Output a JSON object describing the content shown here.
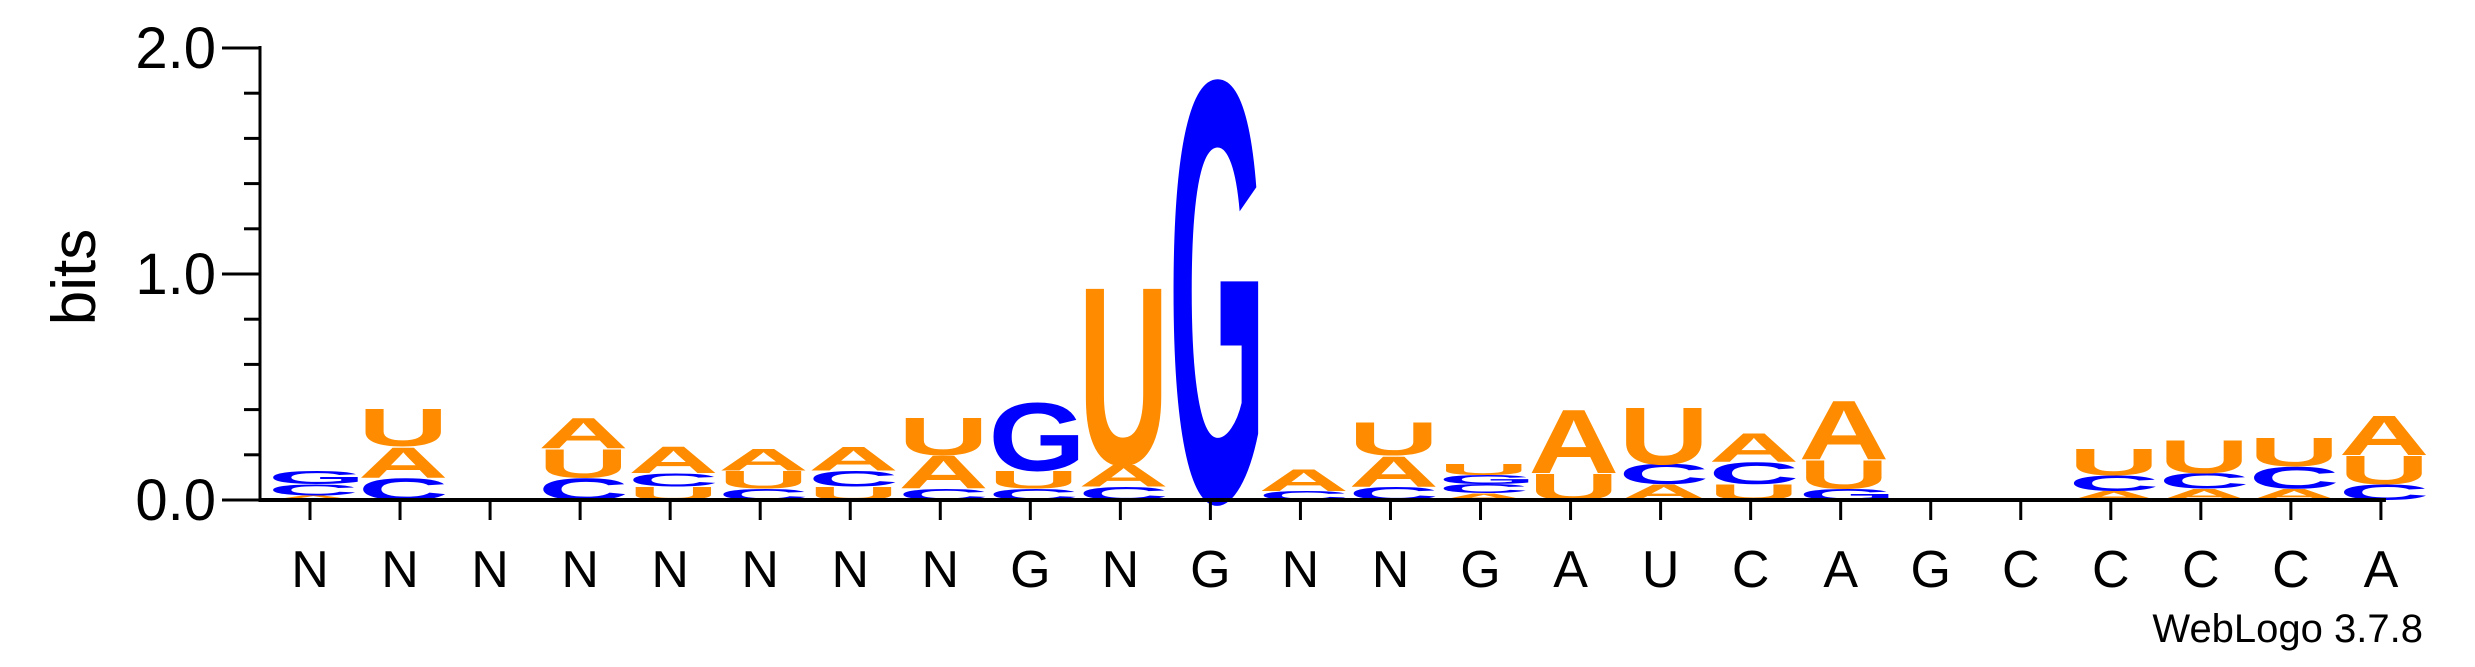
{
  "chart_data": {
    "type": "sequence-logo",
    "title": "",
    "ylabel": "bits",
    "ylim": [
      0,
      2.0
    ],
    "yticks": [
      "0.0",
      "1.0",
      "2.0"
    ],
    "ytick_values": [
      0,
      1,
      2
    ],
    "xlabels": [
      "N",
      "N",
      "N",
      "N",
      "N",
      "N",
      "N",
      "N",
      "G",
      "N",
      "G",
      "N",
      "N",
      "G",
      "A",
      "U",
      "C",
      "A",
      "G",
      "C",
      "C",
      "C",
      "C",
      "A"
    ],
    "credit": "WebLogo 3.7.8",
    "colors": {
      "A": "#ff8c00",
      "U": "#ff8c00",
      "G": "#0000ff",
      "C": "#0000ff"
    },
    "positions": [
      [
        {
          "letter": "A",
          "bits": 0.02
        },
        {
          "letter": "C",
          "bits": 0.05
        },
        {
          "letter": "G",
          "bits": 0.06
        }
      ],
      [
        {
          "letter": "C",
          "bits": 0.1
        },
        {
          "letter": "A",
          "bits": 0.14
        },
        {
          "letter": "U",
          "bits": 0.17
        }
      ],
      [],
      [
        {
          "letter": "C",
          "bits": 0.1
        },
        {
          "letter": "U",
          "bits": 0.13
        },
        {
          "letter": "A",
          "bits": 0.14
        }
      ],
      [
        {
          "letter": "U",
          "bits": 0.06
        },
        {
          "letter": "C",
          "bits": 0.06
        },
        {
          "letter": "A",
          "bits": 0.12
        }
      ],
      [
        {
          "letter": "C",
          "bits": 0.05
        },
        {
          "letter": "U",
          "bits": 0.08
        },
        {
          "letter": "A",
          "bits": 0.1
        }
      ],
      [
        {
          "letter": "U",
          "bits": 0.06
        },
        {
          "letter": "C",
          "bits": 0.07
        },
        {
          "letter": "A",
          "bits": 0.11
        }
      ],
      [
        {
          "letter": "C",
          "bits": 0.05
        },
        {
          "letter": "A",
          "bits": 0.15
        },
        {
          "letter": "U",
          "bits": 0.17
        }
      ],
      [
        {
          "letter": "C",
          "bits": 0.05
        },
        {
          "letter": "U",
          "bits": 0.08
        },
        {
          "letter": "G",
          "bits": 0.31
        }
      ],
      [
        {
          "letter": "C",
          "bits": 0.06
        },
        {
          "letter": "A",
          "bits": 0.1
        },
        {
          "letter": "U",
          "bits": 0.81
        }
      ],
      [
        {
          "letter": "G",
          "bits": 1.92
        }
      ],
      [
        {
          "letter": "C",
          "bits": 0.04
        },
        {
          "letter": "A",
          "bits": 0.1
        }
      ],
      [
        {
          "letter": "C",
          "bits": 0.06
        },
        {
          "letter": "A",
          "bits": 0.14
        },
        {
          "letter": "U",
          "bits": 0.15
        }
      ],
      [
        {
          "letter": "A",
          "bits": 0.03
        },
        {
          "letter": "C",
          "bits": 0.04
        },
        {
          "letter": "G",
          "bits": 0.04
        },
        {
          "letter": "U",
          "bits": 0.05
        }
      ],
      [
        {
          "letter": "U",
          "bits": 0.12
        },
        {
          "letter": "A",
          "bits": 0.29
        }
      ],
      [
        {
          "letter": "A",
          "bits": 0.07
        },
        {
          "letter": "C",
          "bits": 0.09
        },
        {
          "letter": "U",
          "bits": 0.26
        }
      ],
      [
        {
          "letter": "U",
          "bits": 0.07
        },
        {
          "letter": "C",
          "bits": 0.1
        },
        {
          "letter": "A",
          "bits": 0.13
        }
      ],
      [
        {
          "letter": "G",
          "bits": 0.05
        },
        {
          "letter": "U",
          "bits": 0.13
        },
        {
          "letter": "A",
          "bits": 0.27
        }
      ],
      [
        {
          "letter": "A",
          "bits": 0.01
        }
      ],
      [],
      [
        {
          "letter": "A",
          "bits": 0.04
        },
        {
          "letter": "C",
          "bits": 0.07
        },
        {
          "letter": "U",
          "bits": 0.12
        }
      ],
      [
        {
          "letter": "A",
          "bits": 0.05
        },
        {
          "letter": "C",
          "bits": 0.07
        },
        {
          "letter": "U",
          "bits": 0.15
        }
      ],
      [
        {
          "letter": "A",
          "bits": 0.05
        },
        {
          "letter": "C",
          "bits": 0.1
        },
        {
          "letter": "U",
          "bits": 0.13
        }
      ],
      [
        {
          "letter": "C",
          "bits": 0.07
        },
        {
          "letter": "U",
          "bits": 0.13
        },
        {
          "letter": "A",
          "bits": 0.18
        }
      ]
    ]
  }
}
